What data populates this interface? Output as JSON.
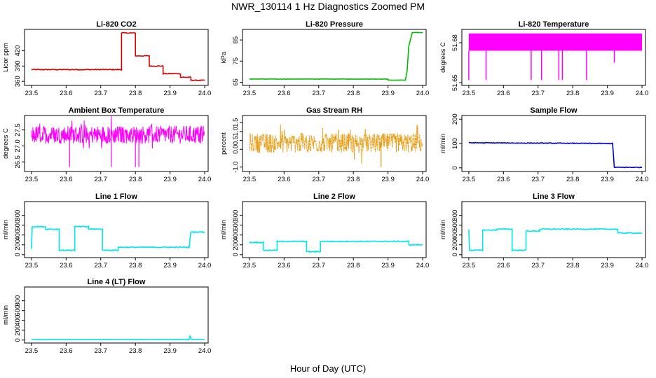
{
  "figure": {
    "title": "NWR_130114  1 Hz Diagnostics Zoomed PM",
    "xlabel": "Hour of Day (UTC)"
  },
  "chart_data": [
    {
      "type": "line",
      "title": "Li-820 CO2",
      "ylabel": "Licor ppm",
      "color": "#dd0000",
      "xlim": [
        23.48,
        24.01
      ],
      "ylim": [
        352,
        462
      ],
      "yticks": [
        360,
        390,
        420
      ],
      "xticks": [
        23.5,
        23.6,
        23.7,
        23.8,
        23.9,
        24.0
      ],
      "x": [
        23.5,
        23.76,
        23.76,
        23.8,
        23.8,
        23.84,
        23.84,
        23.88,
        23.88,
        23.93,
        23.93,
        23.96,
        23.96,
        24.0
      ],
      "y": [
        383,
        383,
        455,
        455,
        410,
        410,
        390,
        390,
        375,
        375,
        368,
        368,
        362,
        362
      ],
      "noise": 0.8
    },
    {
      "type": "line",
      "title": "Li-820 Pressure",
      "ylabel": "kPa",
      "color": "#00bb00",
      "xlim": [
        23.48,
        24.01
      ],
      "ylim": [
        63.5,
        90
      ],
      "yticks": [
        65,
        75,
        85
      ],
      "xticks": [
        23.5,
        23.6,
        23.7,
        23.8,
        23.9,
        24.0
      ],
      "x": [
        23.5,
        23.9,
        23.9,
        23.95,
        23.955,
        23.96,
        23.97,
        24.0
      ],
      "y": [
        66.5,
        66.5,
        66.0,
        66.0,
        70,
        82,
        88.5,
        88.5
      ],
      "noise": 0.08
    },
    {
      "type": "spiky",
      "title": "Li-820 Temperature",
      "ylabel": "degrees C",
      "color": "#ff00ff",
      "xlim": [
        23.48,
        24.01
      ],
      "ylim": [
        51.648,
        51.69
      ],
      "yticks": [
        51.65,
        51.68
      ],
      "ytick_labels": [
        "51.65",
        "51.68"
      ],
      "xticks": [
        23.5,
        23.6,
        23.7,
        23.8,
        23.9,
        24.0
      ],
      "band": [
        51.674,
        51.687
      ],
      "dips": [
        {
          "x": 23.5,
          "y": 51.652
        },
        {
          "x": 23.55,
          "y": 51.652
        },
        {
          "x": 23.68,
          "y": 51.652
        },
        {
          "x": 23.71,
          "y": 51.652
        },
        {
          "x": 23.76,
          "y": 51.652
        },
        {
          "x": 23.77,
          "y": 51.652
        },
        {
          "x": 23.84,
          "y": 51.652
        },
        {
          "x": 23.92,
          "y": 51.665
        }
      ]
    },
    {
      "type": "noise",
      "title": "Ambient Box Temperature",
      "ylabel": "degrees C",
      "color": "#ff00ff",
      "xlim": [
        23.48,
        24.01
      ],
      "ylim": [
        26.2,
        27.95
      ],
      "yticks": [
        26.5,
        27.0,
        27.5
      ],
      "ytick_labels": [
        "26.5",
        "27.0",
        "27.5"
      ],
      "xticks": [
        23.5,
        23.6,
        23.7,
        23.8,
        23.9,
        24.0
      ],
      "mean": 27.35,
      "amplitude": 0.28,
      "spikes_low": [
        23.61,
        23.73,
        23.8,
        23.81
      ]
    },
    {
      "type": "noise",
      "title": "Gas Stream RH",
      "ylabel": "percent",
      "color": "#e69500",
      "xlim": [
        23.48,
        24.01
      ],
      "ylim": [
        -1.25,
        1.9
      ],
      "yticks": [
        -1.0,
        0.0,
        0.5,
        1.0,
        1.5
      ],
      "ytick_labels": [
        "-1.0",
        "0.0",
        "0.5",
        "1.0",
        "1.5"
      ],
      "xticks": [
        23.5,
        23.6,
        23.7,
        23.8,
        23.9,
        24.0
      ],
      "mean": 0.35,
      "amplitude": 0.55,
      "spikes_low": [
        23.88
      ]
    },
    {
      "type": "line",
      "title": "Sample Flow",
      "ylabel": "ml/min",
      "color": "#0000cc",
      "xlim": [
        23.48,
        24.01
      ],
      "ylim": [
        -15,
        215
      ],
      "yticks": [
        0,
        100,
        200
      ],
      "xticks": [
        23.5,
        23.6,
        23.7,
        23.8,
        23.9,
        24.0
      ],
      "x": [
        23.5,
        23.915,
        23.92,
        24.0
      ],
      "y": [
        103,
        100,
        2,
        2
      ],
      "noise": 1.5
    },
    {
      "type": "line",
      "title": "Line 1 Flow",
      "ylabel": "ml/min",
      "color": "#00e5ee",
      "xlim": [
        23.48,
        24.01
      ],
      "ylim": [
        -60,
        1080
      ],
      "yticks": [
        0,
        200,
        400,
        600,
        800
      ],
      "xticks": [
        23.5,
        23.6,
        23.7,
        23.8,
        23.9,
        24.0
      ],
      "x": [
        23.5,
        23.502,
        23.54,
        23.54,
        23.58,
        23.58,
        23.625,
        23.625,
        23.665,
        23.665,
        23.705,
        23.705,
        23.75,
        23.75,
        23.955,
        23.96,
        24.0
      ],
      "y": [
        120,
        570,
        570,
        520,
        520,
        90,
        90,
        570,
        570,
        520,
        520,
        90,
        90,
        150,
        150,
        460,
        460
      ],
      "noise": 10
    },
    {
      "type": "line",
      "title": "Line 2 Flow",
      "ylabel": "ml/min",
      "color": "#00e5ee",
      "xlim": [
        23.48,
        24.01
      ],
      "ylim": [
        -60,
        1080
      ],
      "yticks": [
        0,
        200,
        400,
        600,
        800
      ],
      "xticks": [
        23.5,
        23.6,
        23.7,
        23.8,
        23.9,
        24.0
      ],
      "x": [
        23.5,
        23.54,
        23.54,
        23.58,
        23.58,
        23.665,
        23.665,
        23.705,
        23.705,
        23.96,
        23.96,
        24.0
      ],
      "y": [
        250,
        250,
        90,
        90,
        270,
        270,
        60,
        60,
        270,
        270,
        200,
        200
      ],
      "noise": 10
    },
    {
      "type": "line",
      "title": "Line 3 Flow",
      "ylabel": "ml/min",
      "color": "#00e5ee",
      "xlim": [
        23.48,
        24.01
      ],
      "ylim": [
        -60,
        1080
      ],
      "yticks": [
        0,
        200,
        400,
        600,
        800
      ],
      "xticks": [
        23.5,
        23.6,
        23.7,
        23.8,
        23.9,
        24.0
      ],
      "x": [
        23.5,
        23.502,
        23.54,
        23.54,
        23.58,
        23.58,
        23.625,
        23.625,
        23.665,
        23.665,
        23.705,
        23.705,
        23.93,
        23.93,
        24.0
      ],
      "y": [
        520,
        90,
        90,
        500,
        500,
        520,
        520,
        90,
        90,
        480,
        480,
        520,
        520,
        440,
        440
      ],
      "noise": 10
    },
    {
      "type": "line",
      "title": "Line 4 (LT) Flow",
      "ylabel": "ml/min",
      "color": "#00e5ee",
      "xlim": [
        23.48,
        24.01
      ],
      "ylim": [
        -60,
        1080
      ],
      "yticks": [
        0,
        200,
        400,
        600,
        800
      ],
      "xticks": [
        23.5,
        23.6,
        23.7,
        23.8,
        23.9,
        24.0
      ],
      "x": [
        23.5,
        23.955,
        23.958,
        23.962,
        24.0
      ],
      "y": [
        10,
        10,
        80,
        10,
        10
      ],
      "noise": 2
    }
  ]
}
